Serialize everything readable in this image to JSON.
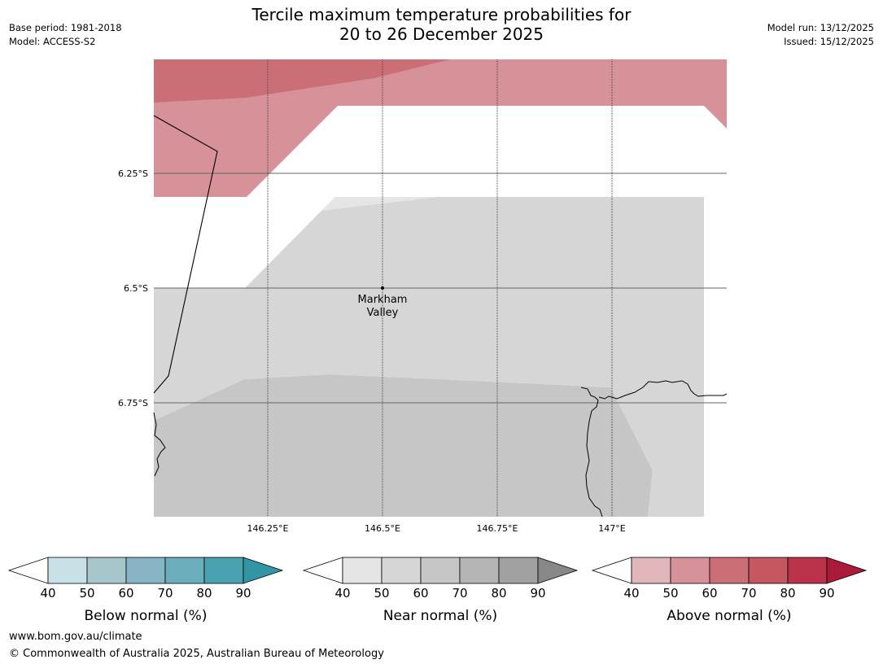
{
  "header": {
    "title_line1": "Tercile maximum temperature probabilities for",
    "title_line2": "20 to 26 December 2025",
    "base_period": "Base period: 1981-2018",
    "model": "Model: ACCESS-S2",
    "model_run": "Model run: 13/12/2025",
    "issued": "Issued: 15/12/2025"
  },
  "map": {
    "lat_labels": [
      "6.25°S",
      "6.5°S",
      "6.75°S"
    ],
    "lon_labels": [
      "146.25°E",
      "146.5°E",
      "146.75°E",
      "147°E"
    ],
    "place": {
      "name_line1": "Markham",
      "name_line2": "Valley"
    },
    "regions": [
      {
        "category": "above",
        "level": "60-70",
        "color": "#cc6e76"
      },
      {
        "category": "above",
        "level": "50-60",
        "color": "#d79199"
      },
      {
        "category": "near",
        "level": "40-50",
        "color": "#e5e5e5"
      },
      {
        "category": "near",
        "level": "50-60",
        "color": "#d6d6d6"
      },
      {
        "category": "near",
        "level": "60-70",
        "color": "#c6c6c6"
      }
    ]
  },
  "legends": [
    {
      "label": "Below normal (%)",
      "ticks": [
        "40",
        "50",
        "60",
        "70",
        "80",
        "90"
      ],
      "colors": [
        "#c8e1e6",
        "#a6c6cc",
        "#88b5c3",
        "#6aaebc",
        "#4aa1af"
      ],
      "end_color": "#3295a3"
    },
    {
      "label": "Near normal (%)",
      "ticks": [
        "40",
        "50",
        "60",
        "70",
        "80",
        "90"
      ],
      "colors": [
        "#e5e5e5",
        "#d6d6d6",
        "#c6c6c6",
        "#b4b4b4",
        "#a1a1a1"
      ],
      "end_color": "#878787"
    },
    {
      "label": "Above normal (%)",
      "ticks": [
        "40",
        "50",
        "60",
        "70",
        "80",
        "90"
      ],
      "colors": [
        "#e1b6bb",
        "#d79199",
        "#cc6e76",
        "#c45760",
        "#ba334a"
      ],
      "end_color": "#ab1a38"
    }
  ],
  "footer": {
    "url": "www.bom.gov.au/climate",
    "copyright": "© Commonwealth of Australia 2025, Australian Bureau of Meteorology"
  }
}
